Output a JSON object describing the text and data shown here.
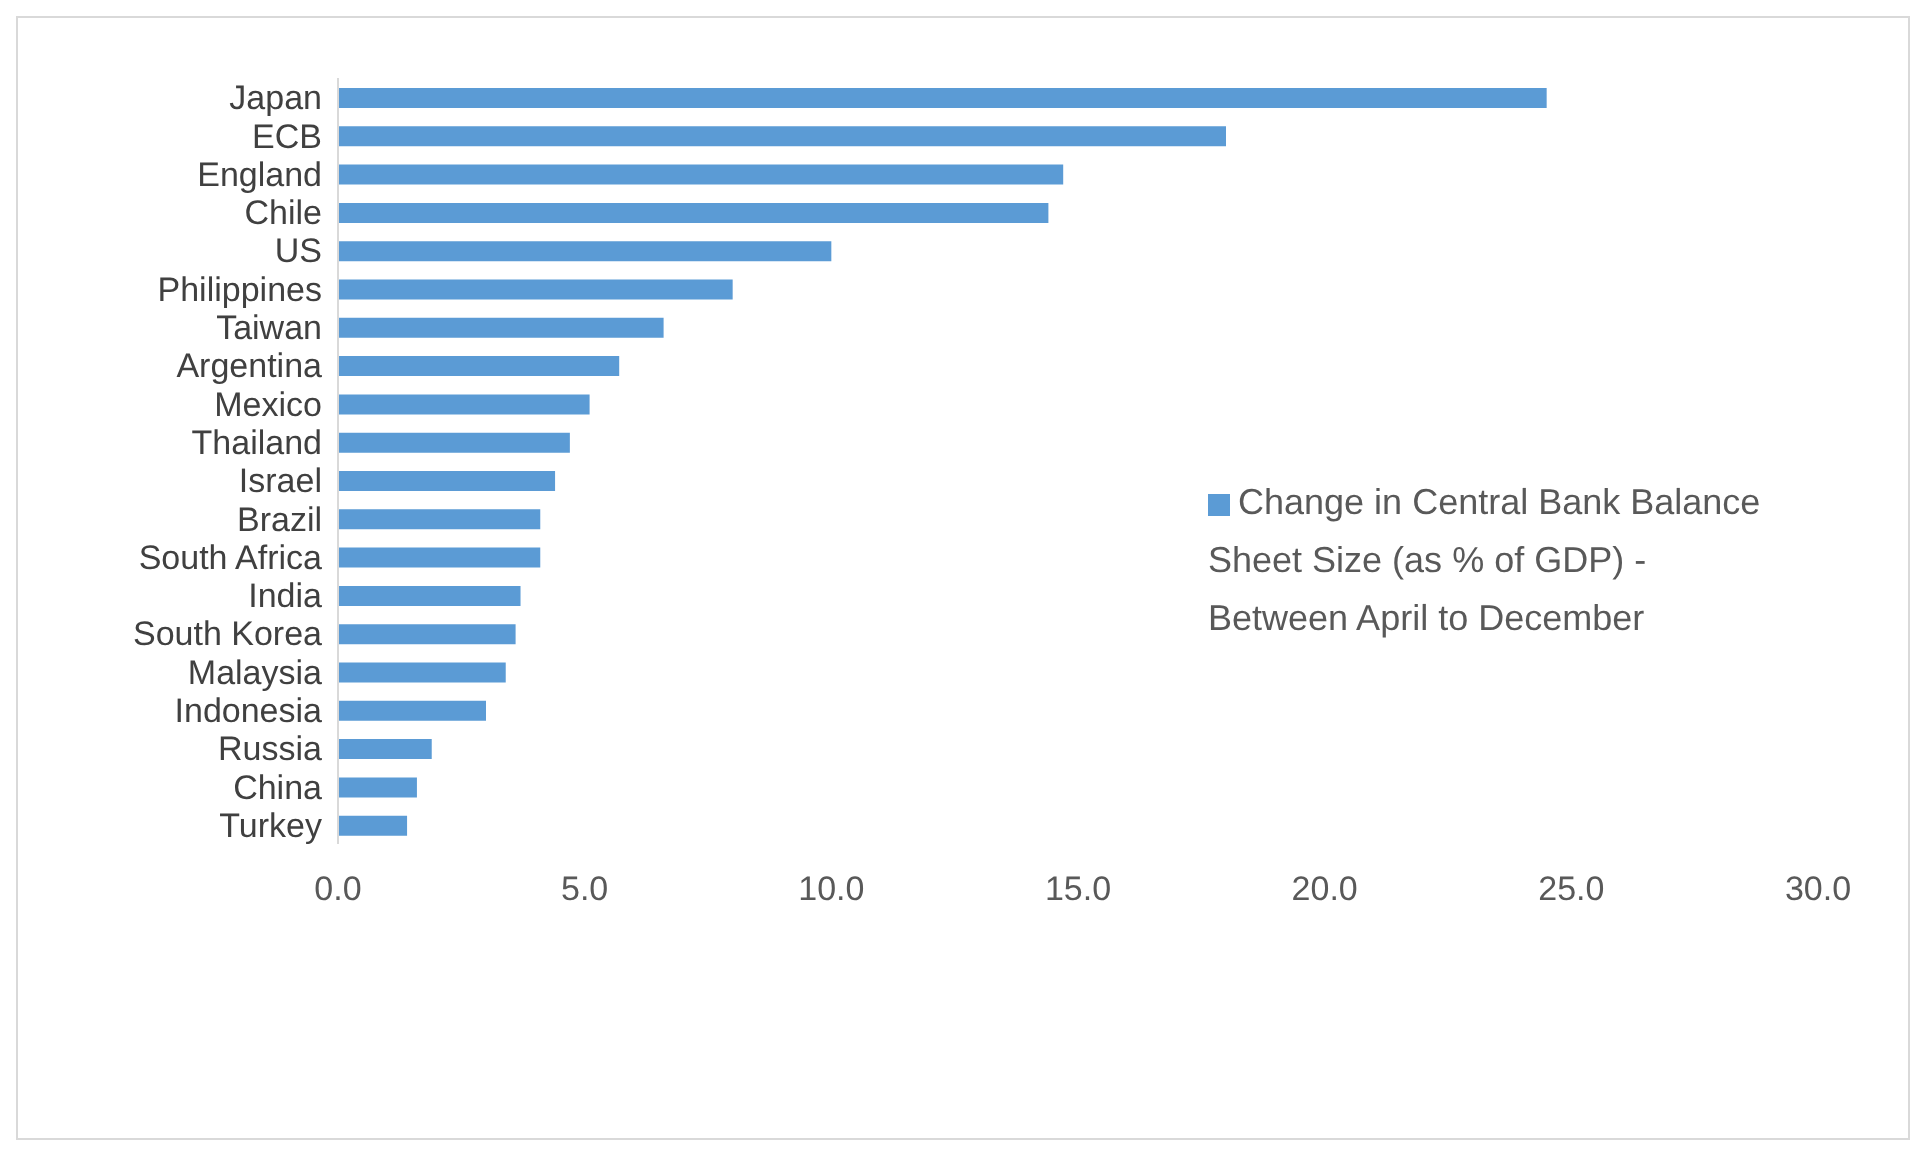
{
  "chart_data": {
    "type": "bar",
    "orientation": "horizontal",
    "categories": [
      "Japan",
      "ECB",
      "England",
      "Chile",
      "US",
      "Philippines",
      "Taiwan",
      "Argentina",
      "Mexico",
      "Thailand",
      "Israel",
      "Brazil",
      "South Africa",
      "India",
      "South Korea",
      "Malaysia",
      "Indonesia",
      "Russia",
      "China",
      "Turkey"
    ],
    "series": [
      {
        "name": "Change in Central Bank Balance Sheet Size (as % of GDP) - Between April to December",
        "color": "#5b9bd5",
        "values": [
          24.5,
          18.0,
          14.7,
          14.4,
          10.0,
          8.0,
          6.6,
          5.7,
          5.1,
          4.7,
          4.4,
          4.1,
          4.1,
          3.7,
          3.6,
          3.4,
          3.0,
          1.9,
          1.6,
          1.4
        ]
      }
    ],
    "xlim": [
      0,
      30
    ],
    "xticks": [
      {
        "value": 0,
        "label": "0.0"
      },
      {
        "value": 5,
        "label": "5.0"
      },
      {
        "value": 10,
        "label": "10.0"
      },
      {
        "value": 15,
        "label": "15.0"
      },
      {
        "value": 20,
        "label": "20.0"
      },
      {
        "value": 25,
        "label": "25.0"
      },
      {
        "value": 30,
        "label": "30.0"
      }
    ],
    "grid": false,
    "legend": "right"
  }
}
